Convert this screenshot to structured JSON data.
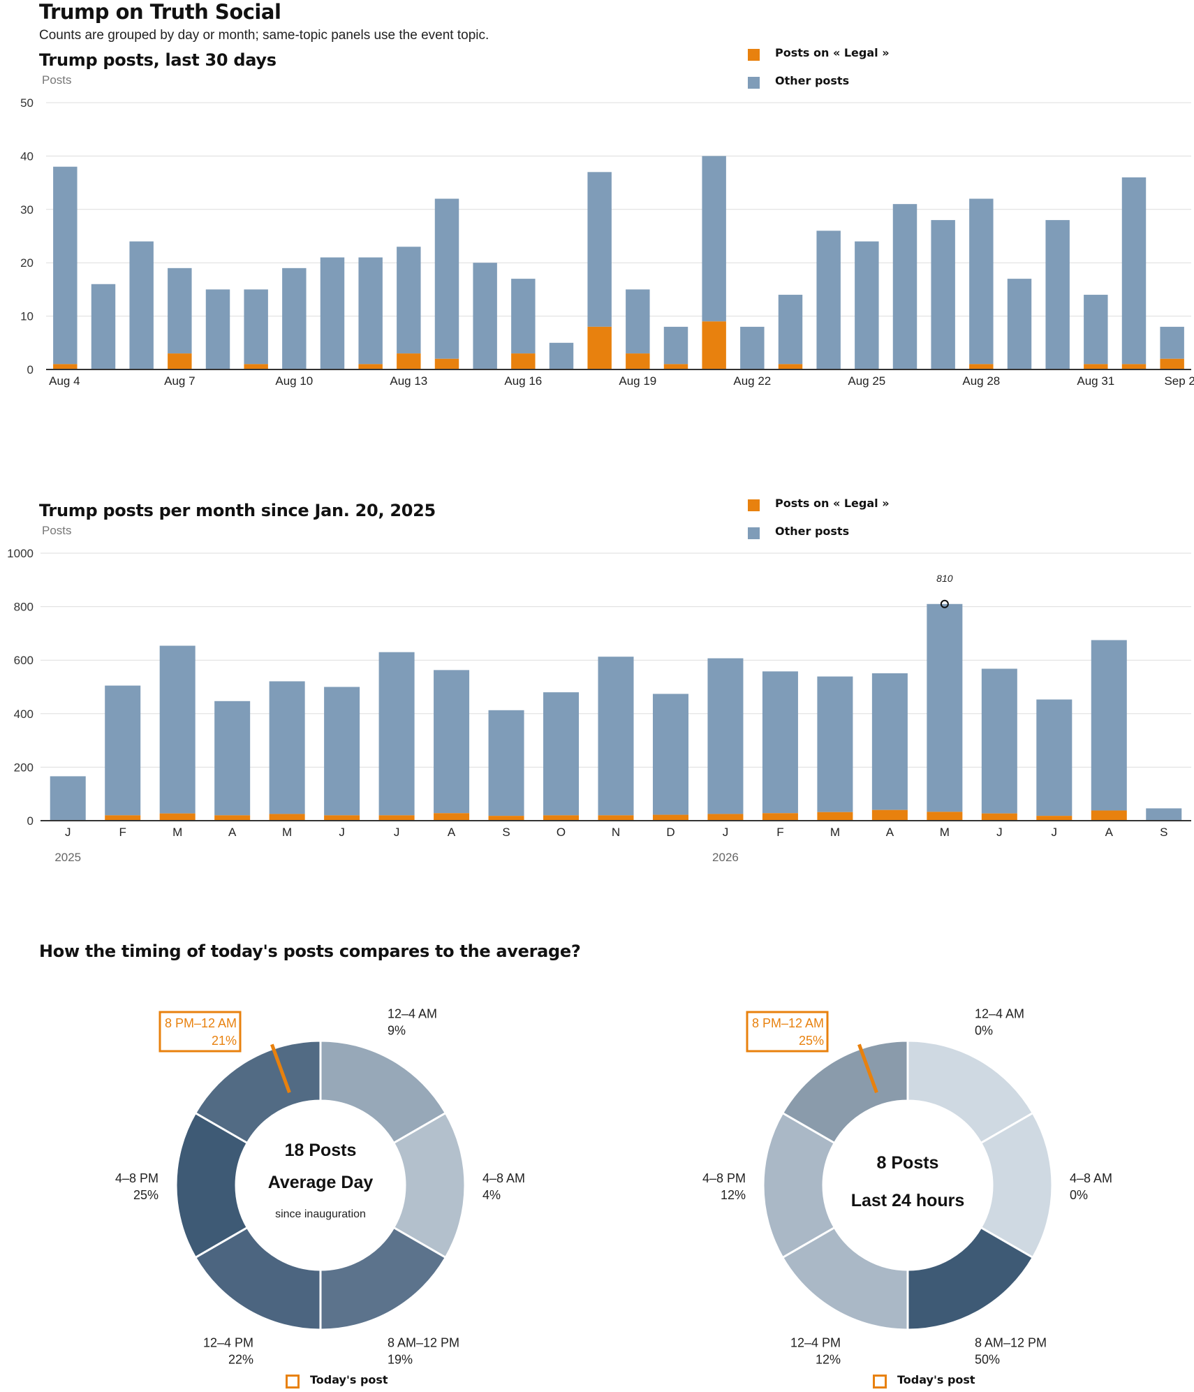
{
  "header": {
    "title": "Trump on Truth Social",
    "subtitle": "Counts are grouped by day or month; same-topic panels use the event topic."
  },
  "colors": {
    "topic": "#E8810E",
    "other": "#7F9CB8",
    "axis": "#333333",
    "grid": "#DDDDDD"
  },
  "legend": {
    "topic_label": "Posts on « Legal »",
    "other_label": "Other posts"
  },
  "chart_data": [
    {
      "type": "bar",
      "stacked": true,
      "title": "Trump posts, last 30 days",
      "ylabel": "Posts",
      "ylim": [
        0,
        50
      ],
      "yticks": [
        0,
        10,
        20,
        30,
        40,
        50
      ],
      "grid": true,
      "legend_position": "top-right",
      "categories": [
        "Aug 4",
        "Aug 5",
        "Aug 6",
        "Aug 7",
        "Aug 8",
        "Aug 9",
        "Aug 10",
        "Aug 11",
        "Aug 12",
        "Aug 13",
        "Aug 14",
        "Aug 15",
        "Aug 16",
        "Aug 17",
        "Aug 18",
        "Aug 19",
        "Aug 20",
        "Aug 21",
        "Aug 22",
        "Aug 23",
        "Aug 24",
        "Aug 25",
        "Aug 26",
        "Aug 27",
        "Aug 28",
        "Aug 29",
        "Aug 30",
        "Aug 31",
        "Sep 1",
        "Sep 2"
      ],
      "tick_labels": [
        "Aug 4",
        "",
        "",
        "Aug 7",
        "",
        "",
        "Aug 10",
        "",
        "",
        "Aug 13",
        "",
        "",
        "Aug 16",
        "",
        "",
        "Aug 19",
        "",
        "",
        "Aug 22",
        "",
        "",
        "Aug 25",
        "",
        "",
        "Aug 28",
        "",
        "",
        "Aug 31",
        "",
        "Sep 2"
      ],
      "series": [
        {
          "name": "Posts on « Legal »",
          "values": [
            1,
            0,
            0,
            3,
            0,
            1,
            0,
            0,
            1,
            3,
            2,
            0,
            3,
            0,
            8,
            3,
            1,
            9,
            0,
            1,
            0,
            0,
            0,
            0,
            1,
            0,
            0,
            1,
            1,
            2
          ]
        },
        {
          "name": "Other posts",
          "values": [
            37,
            16,
            24,
            16,
            15,
            14,
            19,
            21,
            20,
            20,
            30,
            20,
            14,
            5,
            29,
            12,
            7,
            31,
            8,
            13,
            26,
            24,
            31,
            28,
            31,
            17,
            28,
            13,
            35,
            6
          ]
        }
      ]
    },
    {
      "type": "bar",
      "stacked": true,
      "title": "Trump posts per month since Jan. 20, 2025",
      "ylabel": "Posts",
      "ylim": [
        0,
        1000
      ],
      "yticks": [
        0,
        200,
        400,
        600,
        800,
        1000
      ],
      "grid": true,
      "legend_position": "top-right",
      "categories": [
        "J",
        "F",
        "M",
        "A",
        "M",
        "J",
        "J",
        "A",
        "S",
        "O",
        "N",
        "D",
        "J",
        "F",
        "M",
        "A",
        "M",
        "J",
        "J",
        "A",
        "S"
      ],
      "year_labels": [
        {
          "index": 0,
          "label": "2025"
        },
        {
          "index": 12,
          "label": "2026"
        }
      ],
      "annotation": {
        "index": 16,
        "label": "810"
      },
      "series": [
        {
          "name": "Posts on « Legal »",
          "values": [
            0,
            20,
            27,
            20,
            25,
            20,
            20,
            28,
            18,
            20,
            20,
            22,
            25,
            28,
            32,
            40,
            33,
            27,
            18,
            38,
            0
          ]
        },
        {
          "name": "Other posts",
          "values": [
            166,
            485,
            627,
            427,
            496,
            480,
            610,
            535,
            395,
            460,
            593,
            452,
            582,
            530,
            507,
            511,
            777,
            541,
            435,
            637,
            46
          ]
        }
      ]
    },
    {
      "type": "pie",
      "donut": true,
      "center_count": "18 Posts",
      "center_title": "Average Day",
      "center_note": "since inauguration",
      "highlight_index": 5,
      "slices": [
        {
          "label": "12–4 AM",
          "value": 9,
          "pct": "9%",
          "color": "#97A8B8"
        },
        {
          "label": "4–8 AM",
          "value": 4,
          "pct": "4%",
          "color": "#B3C0CC"
        },
        {
          "label": "8 AM–12 PM",
          "value": 19,
          "pct": "19%",
          "color": "#5C738C"
        },
        {
          "label": "12–4 PM",
          "value": 22,
          "pct": "22%",
          "color": "#4C6580"
        },
        {
          "label": "4–8 PM",
          "value": 25,
          "pct": "25%",
          "color": "#3E5A75"
        },
        {
          "label": "8 PM–12 AM",
          "value": 21,
          "pct": "21%",
          "color": "#526B84"
        }
      ]
    },
    {
      "type": "pie",
      "donut": true,
      "center_count": "8 Posts",
      "center_title": "Last 24 hours",
      "center_note": "",
      "highlight_index": 5,
      "slices": [
        {
          "label": "12–4 AM",
          "value": 0,
          "pct": "0%",
          "color": "#CFD9E2"
        },
        {
          "label": "4–8 AM",
          "value": 0,
          "pct": "0%",
          "color": "#CFD9E2"
        },
        {
          "label": "8 AM–12 PM",
          "value": 50,
          "pct": "50%",
          "color": "#3E5A75"
        },
        {
          "label": "12–4 PM",
          "value": 12,
          "pct": "12%",
          "color": "#AAB8C6"
        },
        {
          "label": "4–8 PM",
          "value": 12,
          "pct": "12%",
          "color": "#AAB8C6"
        },
        {
          "label": "8 PM–12 AM",
          "value": 25,
          "pct": "25%",
          "color": "#8A9BAB"
        }
      ]
    }
  ],
  "timing": {
    "title": "How the timing of today's posts compares to the average?",
    "todays_post_label": "Today's post"
  }
}
